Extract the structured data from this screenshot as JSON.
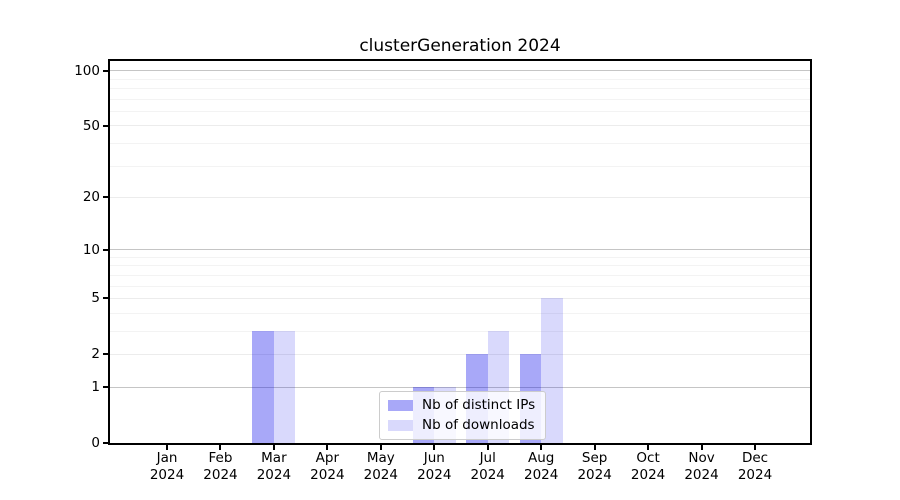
{
  "chart_data": {
    "type": "bar",
    "title": "clusterGeneration 2024",
    "categories": [
      "Jan 2024",
      "Feb 2024",
      "Mar 2024",
      "Apr 2024",
      "May 2024",
      "Jun 2024",
      "Jul 2024",
      "Aug 2024",
      "Sep 2024",
      "Oct 2024",
      "Nov 2024",
      "Dec 2024"
    ],
    "series": [
      {
        "name": "Nb of distinct IPs",
        "color": "#0000eb",
        "alpha": 0.34,
        "values": [
          0,
          0,
          3,
          0,
          0,
          1,
          2,
          2,
          0,
          0,
          0,
          0
        ]
      },
      {
        "name": "Nb of downloads",
        "color": "#0000eb",
        "alpha": 0.15,
        "values": [
          0,
          0,
          3,
          0,
          0,
          1,
          3,
          5,
          0,
          0,
          0,
          0
        ]
      }
    ],
    "xlabel": "",
    "ylabel": "",
    "yscale": "log1p",
    "ylim": [
      0,
      113
    ],
    "yticks": [
      0,
      1,
      2,
      5,
      10,
      20,
      50,
      100
    ],
    "major_grid_values": [
      1,
      10,
      100
    ],
    "minor_gridlines": [
      3,
      4,
      6,
      7,
      8,
      9,
      30,
      40,
      60,
      70,
      80,
      90
    ],
    "grid": true,
    "legend": {
      "position": "lower center",
      "items": [
        "Nb of distinct IPs",
        "Nb of downloads"
      ]
    }
  },
  "colors": {
    "background": "#ffffff",
    "spine": "#000000",
    "grid_major": "#c5c5c5",
    "grid_mid": "#ececec",
    "grid_minor": "#f3f3f3",
    "bar_dark_effective": "#aaaaf9",
    "bar_light_effective": "#dbdbfa",
    "legend_border": "#cccccc"
  }
}
